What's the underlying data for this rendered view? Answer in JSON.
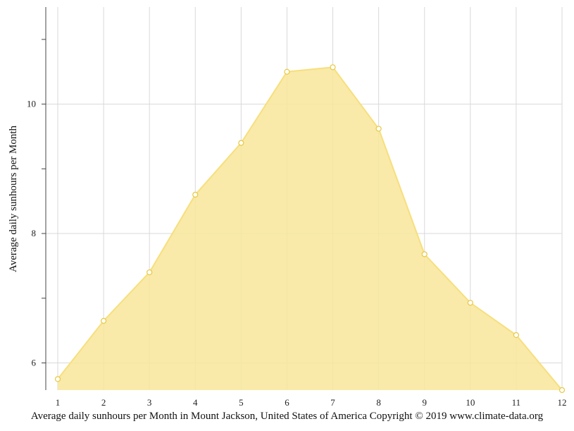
{
  "chart_data": {
    "type": "area",
    "x": [
      1,
      2,
      3,
      4,
      5,
      6,
      7,
      8,
      9,
      10,
      11,
      12
    ],
    "series": [
      {
        "values": [
          5.75,
          6.65,
          7.4,
          8.6,
          9.4,
          10.5,
          10.57,
          9.62,
          7.68,
          6.93,
          6.43,
          5.58
        ]
      }
    ],
    "ylabel": "Average daily sunhours per Month",
    "xlim": [
      1,
      12
    ],
    "ylim": [
      5.58,
      11.5
    ],
    "yticks_major": [
      6,
      8,
      10
    ],
    "yticks_minor": [
      7,
      9,
      11
    ],
    "grid": true,
    "colors": {
      "fill": "#f8e69a",
      "stroke": "#f7df7c",
      "marker_fill": "#ffffff",
      "marker_stroke": "#e8c840",
      "grid": "#d9d9d9"
    }
  },
  "caption": "Average daily sunhours per Month in Mount Jackson, United States of America Copyright © 2019 www.climate-data.org"
}
